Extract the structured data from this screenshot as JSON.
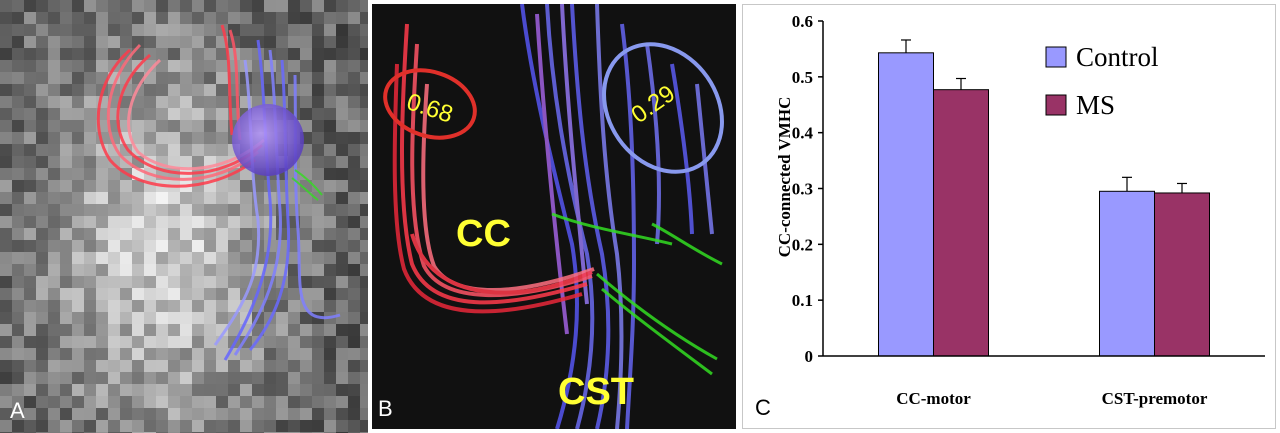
{
  "panels": {
    "a": {
      "letter": "A"
    },
    "b": {
      "letter": "B",
      "labels": {
        "cc": "CC",
        "cst": "CST"
      },
      "values": {
        "left": "0.68",
        "right": "0.29"
      }
    },
    "c": {
      "letter": "C"
    }
  },
  "colors": {
    "control": "#9999ff",
    "ms": "#993366",
    "cc_fiber": "#ff3b4b",
    "cst_fiber": "#6666ff",
    "green_fiber": "#33dd22",
    "ellipse_red": "#e0302a",
    "ellipse_blue": "#8899ee",
    "label_yellow": "#ffff33"
  },
  "chart_data": {
    "type": "bar",
    "categories": [
      "CC-motor",
      "CST-premotor"
    ],
    "series": [
      {
        "name": "Control",
        "values": [
          0.543,
          0.295
        ],
        "errors": [
          0.023,
          0.025
        ]
      },
      {
        "name": "MS",
        "values": [
          0.477,
          0.292
        ],
        "errors": [
          0.02,
          0.017
        ]
      }
    ],
    "ylabel": "CC-connected VMHC",
    "xlabel": "",
    "ylim": [
      0,
      0.6
    ],
    "yticks": [
      "0",
      "0.1",
      "0.2",
      "0.3",
      "0.4",
      "0.5",
      "0.6"
    ],
    "grid": false,
    "legend_position": "top-right"
  }
}
